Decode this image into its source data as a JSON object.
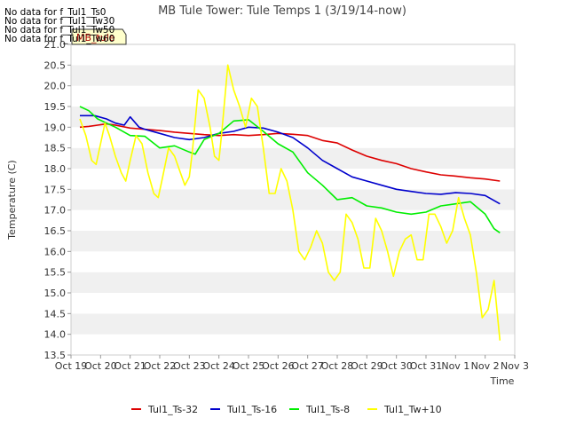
{
  "chart_data": {
    "type": "line",
    "title": "MB Tule Tower: Tule Temps 1 (3/19/14-now)",
    "xlabel": "Time",
    "ylabel": "Temperature (C)",
    "ylim": [
      13.5,
      21.0
    ],
    "xlim": [
      0,
      15
    ],
    "yticks": [
      13.5,
      14.0,
      14.5,
      15.0,
      15.5,
      16.0,
      16.5,
      17.0,
      17.5,
      18.0,
      18.5,
      19.0,
      19.5,
      20.0,
      20.5,
      21.0
    ],
    "ytick_labels": [
      "13.5",
      "14.0",
      "14.5",
      "15.0",
      "15.5",
      "16.0",
      "16.5",
      "17.0",
      "17.5",
      "18.0",
      "18.5",
      "19.0",
      "19.5",
      "20.0",
      "20.5",
      "21.0"
    ],
    "xticks": [
      0,
      1,
      2,
      3,
      4,
      5,
      6,
      7,
      8,
      9,
      10,
      11,
      12,
      13,
      14,
      15
    ],
    "xtick_labels": [
      "Oct 19",
      "Oct 20",
      "Oct 21",
      "Oct 22",
      "Oct 23",
      "Oct 24",
      "Oct 25",
      "Oct 26",
      "Oct 27",
      "Oct 28",
      "Oct 29",
      "Oct 30",
      "Oct 31",
      "Nov 1",
      "Nov 2",
      "Nov 3"
    ],
    "grid": "horizontal-bands",
    "legend_position": "bottom",
    "no_data_messages": [
      "No data for f_Tul1_Ts0",
      "No data for f_Tul1_Tw30",
      "No data for f_Tul1_Tw50",
      "No data for f_Tul1_Tw60"
    ],
    "tooltip_label": "MB_tule",
    "series": [
      {
        "name": "Tul1_Ts-32",
        "color": "#dd0000",
        "x": [
          0.3,
          0.6,
          0.9,
          1.2,
          1.5,
          2.0,
          2.5,
          3.0,
          3.5,
          4.0,
          4.5,
          5.0,
          5.5,
          6.0,
          6.5,
          7.0,
          7.5,
          8.0,
          8.5,
          9.0,
          9.5,
          10.0,
          10.5,
          11.0,
          11.5,
          12.0,
          12.5,
          13.0,
          13.5,
          14.0,
          14.5
        ],
        "y": [
          19.0,
          19.02,
          19.05,
          19.08,
          19.05,
          18.98,
          18.95,
          18.92,
          18.88,
          18.85,
          18.82,
          18.8,
          18.82,
          18.8,
          18.82,
          18.85,
          18.83,
          18.8,
          18.68,
          18.62,
          18.45,
          18.3,
          18.2,
          18.12,
          18.0,
          17.92,
          17.85,
          17.82,
          17.78,
          17.75,
          17.7
        ]
      },
      {
        "name": "Tul1_Ts-16",
        "color": "#0000cc",
        "x": [
          0.3,
          0.8,
          1.2,
          1.5,
          1.8,
          2.0,
          2.3,
          2.5,
          3.0,
          3.5,
          4.0,
          4.5,
          5.0,
          5.5,
          6.0,
          6.5,
          7.0,
          7.5,
          8.0,
          8.5,
          9.0,
          9.5,
          10.0,
          10.5,
          11.0,
          11.5,
          12.0,
          12.5,
          13.0,
          13.5,
          14.0,
          14.5
        ],
        "y": [
          19.28,
          19.28,
          19.2,
          19.1,
          19.05,
          19.25,
          19.0,
          18.95,
          18.85,
          18.75,
          18.7,
          18.75,
          18.85,
          18.9,
          19.0,
          18.98,
          18.88,
          18.75,
          18.5,
          18.2,
          18.0,
          17.8,
          17.7,
          17.6,
          17.5,
          17.45,
          17.4,
          17.38,
          17.42,
          17.4,
          17.35,
          17.15
        ]
      },
      {
        "name": "Tul1_Ts-8",
        "color": "#00ee00",
        "x": [
          0.3,
          0.6,
          0.9,
          1.2,
          1.5,
          2.0,
          2.5,
          3.0,
          3.5,
          4.0,
          4.2,
          4.5,
          5.0,
          5.5,
          6.0,
          6.5,
          7.0,
          7.5,
          8.0,
          8.5,
          9.0,
          9.5,
          10.0,
          10.5,
          11.0,
          11.5,
          12.0,
          12.5,
          13.0,
          13.5,
          14.0,
          14.3,
          14.5
        ],
        "y": [
          19.5,
          19.4,
          19.2,
          19.1,
          19.0,
          18.8,
          18.78,
          18.5,
          18.55,
          18.4,
          18.35,
          18.7,
          18.85,
          19.15,
          19.18,
          18.9,
          18.6,
          18.4,
          17.9,
          17.6,
          17.25,
          17.3,
          17.1,
          17.05,
          16.95,
          16.9,
          16.95,
          17.1,
          17.15,
          17.2,
          16.9,
          16.55,
          16.45
        ]
      },
      {
        "name": "Tul1_Tw+10",
        "color": "#ffff00",
        "x": [
          0.3,
          0.5,
          0.7,
          0.85,
          1.0,
          1.15,
          1.3,
          1.5,
          1.7,
          1.85,
          2.0,
          2.2,
          2.4,
          2.6,
          2.8,
          2.95,
          3.1,
          3.3,
          3.5,
          3.7,
          3.85,
          4.0,
          4.1,
          4.3,
          4.5,
          4.7,
          4.85,
          5.0,
          5.1,
          5.3,
          5.5,
          5.7,
          5.9,
          6.1,
          6.3,
          6.5,
          6.7,
          6.9,
          7.1,
          7.3,
          7.5,
          7.7,
          7.9,
          8.1,
          8.3,
          8.5,
          8.7,
          8.9,
          9.1,
          9.3,
          9.5,
          9.7,
          9.9,
          10.1,
          10.3,
          10.5,
          10.7,
          10.9,
          11.1,
          11.3,
          11.5,
          11.7,
          11.9,
          12.1,
          12.3,
          12.5,
          12.7,
          12.9,
          13.1,
          13.3,
          13.5,
          13.7,
          13.9,
          14.1,
          14.3,
          14.5
        ],
        "y": [
          19.2,
          18.8,
          18.2,
          18.1,
          18.6,
          19.1,
          18.8,
          18.3,
          17.9,
          17.7,
          18.2,
          18.8,
          18.6,
          17.9,
          17.4,
          17.3,
          17.8,
          18.5,
          18.3,
          17.9,
          17.6,
          17.8,
          18.4,
          19.9,
          19.7,
          19.0,
          18.3,
          18.2,
          18.9,
          20.5,
          19.9,
          19.5,
          19.0,
          19.7,
          19.5,
          18.5,
          17.4,
          17.4,
          18.0,
          17.7,
          17.0,
          16.0,
          15.8,
          16.1,
          16.5,
          16.2,
          15.5,
          15.3,
          15.5,
          16.9,
          16.7,
          16.3,
          15.6,
          15.6,
          16.8,
          16.5,
          16.0,
          15.4,
          16.0,
          16.3,
          16.4,
          15.8,
          15.8,
          16.9,
          16.9,
          16.6,
          16.2,
          16.5,
          17.3,
          16.8,
          16.4,
          15.5,
          14.4,
          14.6,
          15.3,
          13.85
        ]
      }
    ]
  }
}
